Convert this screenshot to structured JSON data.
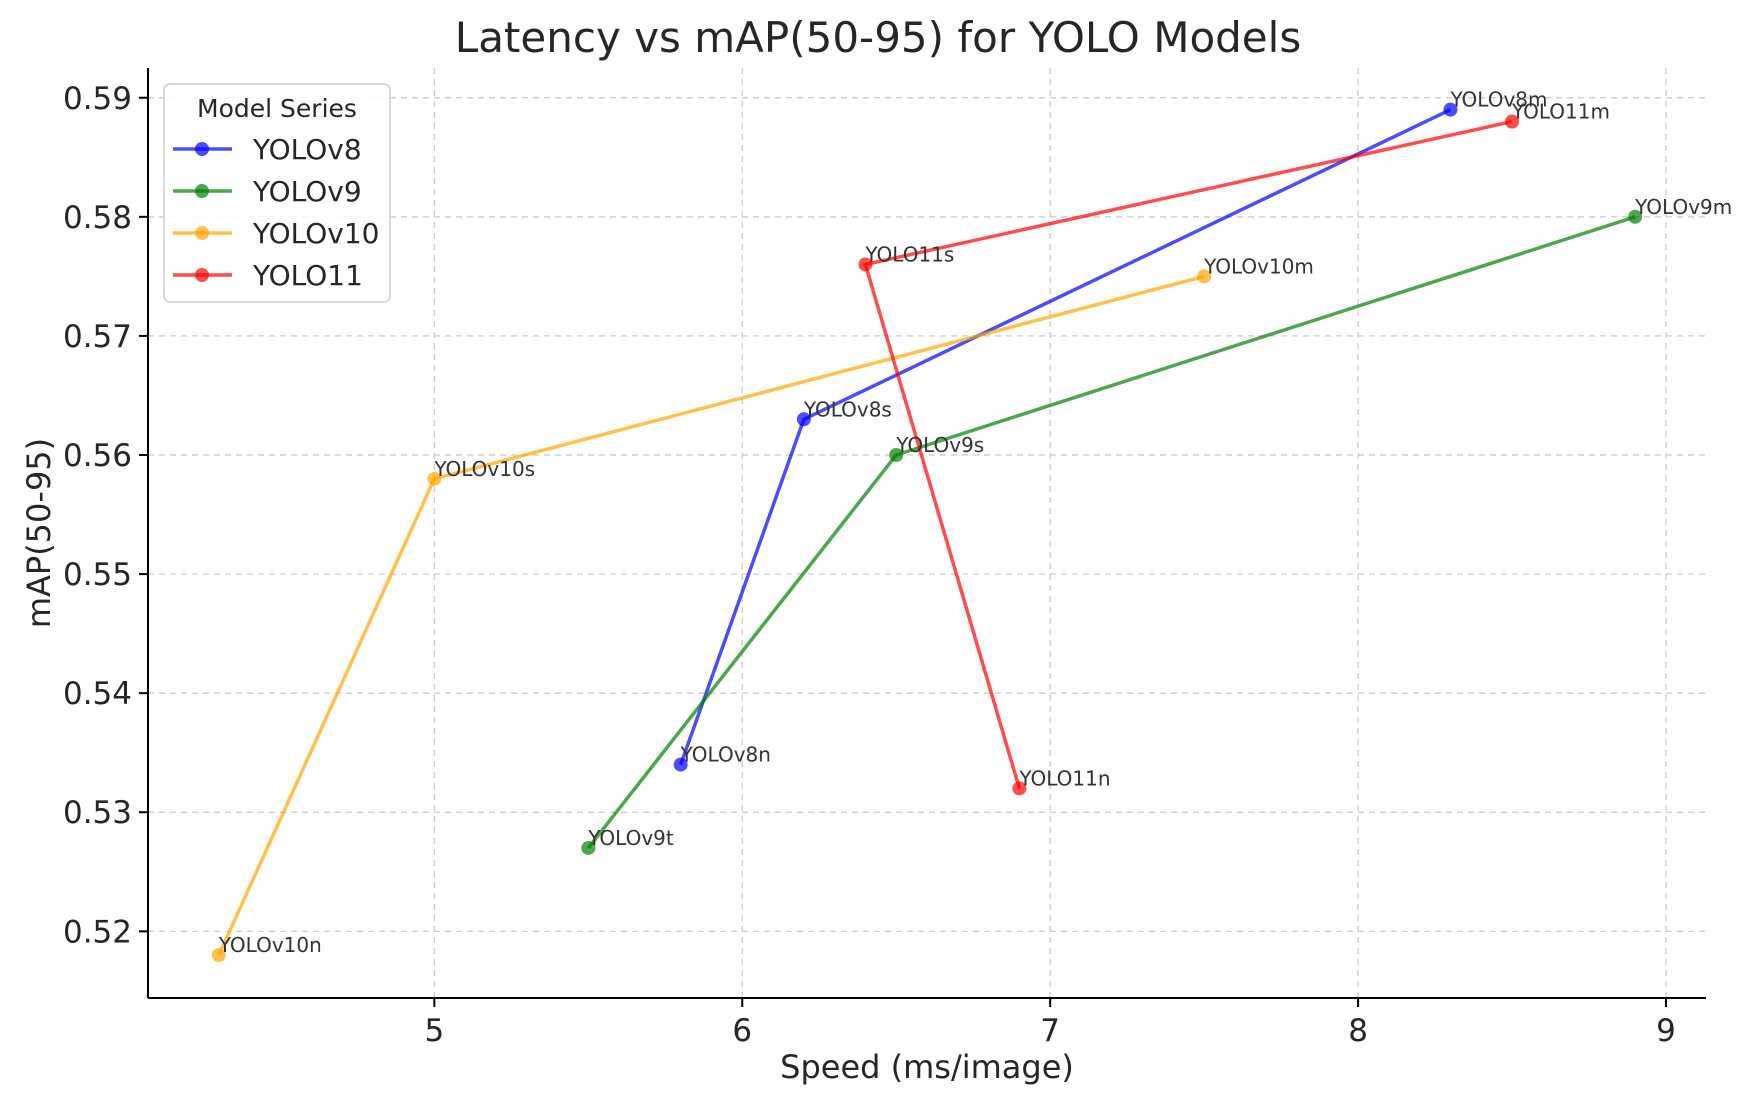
{
  "chart_data": {
    "type": "line",
    "title": "Latency vs mAP(50-95) for YOLO Models",
    "xlabel": "Speed (ms/image)",
    "ylabel": "mAP(50-95)",
    "xlim": [
      4.07,
      9.13
    ],
    "ylim": [
      0.5144,
      0.5925
    ],
    "xticks": [
      5,
      6,
      7,
      8,
      9
    ],
    "yticks": [
      0.52,
      0.53,
      0.54,
      0.55,
      0.56,
      0.57,
      0.58,
      0.59
    ],
    "grid": true,
    "legend": {
      "title": "Model Series",
      "placement": "top-left"
    },
    "series": [
      {
        "name": "YOLOv8",
        "color": "#0000ff",
        "points": [
          {
            "label": "YOLOv8n",
            "x": 5.8,
            "y": 0.534
          },
          {
            "label": "YOLOv8s",
            "x": 6.2,
            "y": 0.563
          },
          {
            "label": "YOLOv8m",
            "x": 8.3,
            "y": 0.589
          }
        ]
      },
      {
        "name": "YOLOv9",
        "color": "#008000",
        "points": [
          {
            "label": "YOLOv9t",
            "x": 5.5,
            "y": 0.527
          },
          {
            "label": "YOLOv9s",
            "x": 6.5,
            "y": 0.56
          },
          {
            "label": "YOLOv9m",
            "x": 8.9,
            "y": 0.58
          }
        ]
      },
      {
        "name": "YOLOv10",
        "color": "#ffa500",
        "points": [
          {
            "label": "YOLOv10n",
            "x": 4.3,
            "y": 0.518
          },
          {
            "label": "YOLOv10s",
            "x": 5.0,
            "y": 0.558
          },
          {
            "label": "YOLOv10m",
            "x": 7.5,
            "y": 0.575
          }
        ]
      },
      {
        "name": "YOLO11",
        "color": "#ff0000",
        "points": [
          {
            "label": "YOLO11n",
            "x": 6.9,
            "y": 0.532
          },
          {
            "label": "YOLO11s",
            "x": 6.4,
            "y": 0.576
          },
          {
            "label": "YOLO11m",
            "x": 8.5,
            "y": 0.588
          }
        ]
      }
    ]
  }
}
